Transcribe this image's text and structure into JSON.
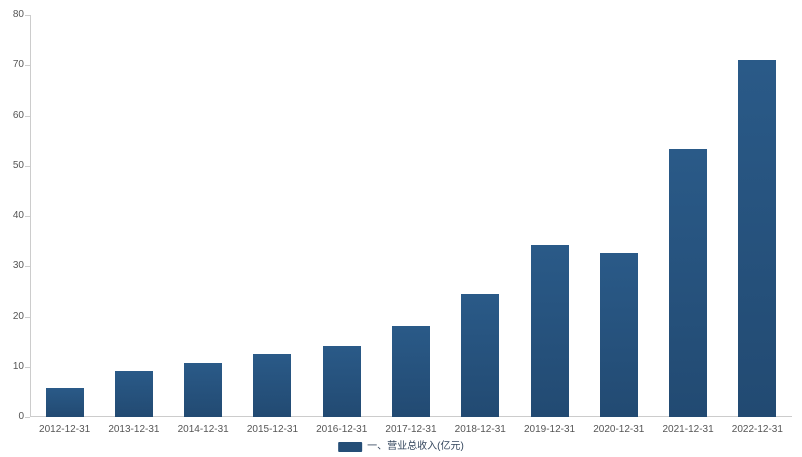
{
  "chart_data": {
    "type": "bar",
    "title": "",
    "xlabel": "",
    "ylabel": "",
    "categories": [
      "2012-12-31",
      "2013-12-31",
      "2014-12-31",
      "2015-12-31",
      "2016-12-31",
      "2017-12-31",
      "2018-12-31",
      "2019-12-31",
      "2020-12-31",
      "2021-12-31",
      "2022-12-31"
    ],
    "series": [
      {
        "name": "一、营业总收入(亿元)",
        "values": [
          5.8,
          9.2,
          10.7,
          12.5,
          14.1,
          18.2,
          24.4,
          34.2,
          32.6,
          53.3,
          71.1
        ]
      }
    ],
    "ylim": [
      0,
      80
    ],
    "y_ticks": [
      0,
      10,
      20,
      30,
      40,
      50,
      60,
      70,
      80
    ],
    "grid": false,
    "legend_position": "bottom",
    "bar_color": "#254e77",
    "axis_color": "#cccccc",
    "tick_label_color": "#555555"
  },
  "legend": {
    "label": "一、营业总收入(亿元)"
  }
}
